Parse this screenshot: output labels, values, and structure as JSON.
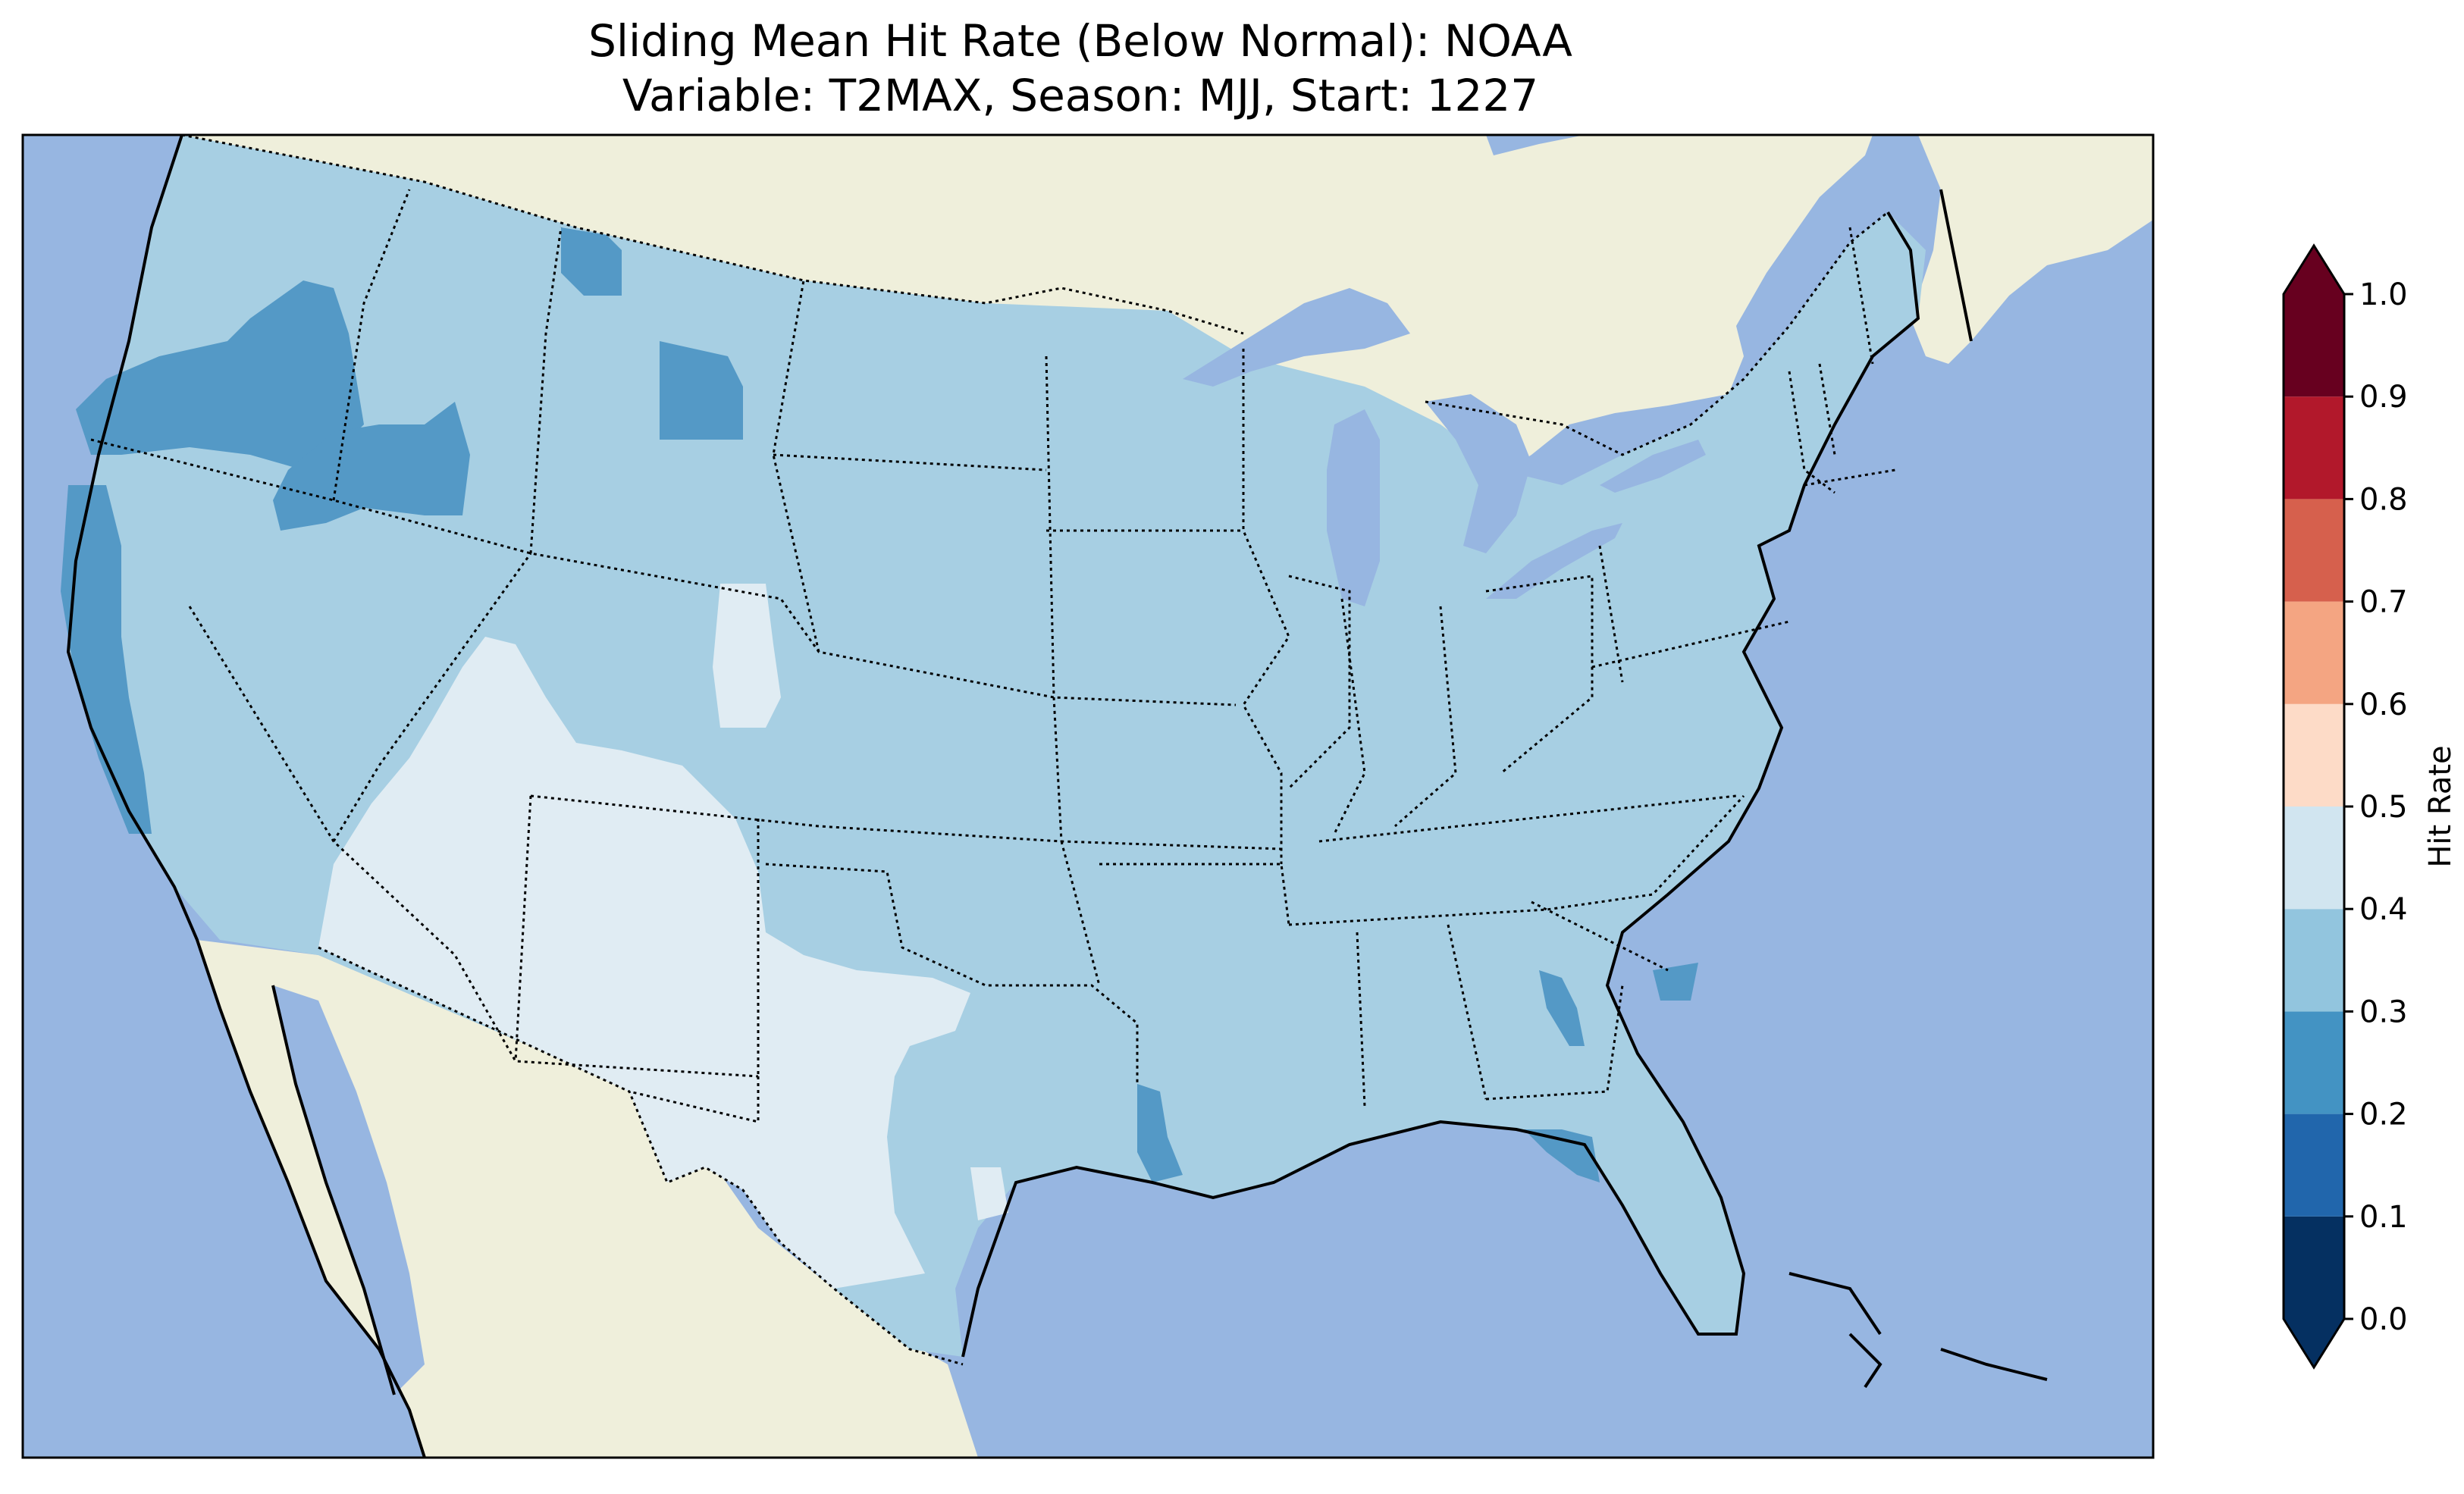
{
  "title": {
    "line1": "Sliding Mean Hit Rate (Below Normal): NOAA",
    "line2": "Variable: T2MAX, Season: MJJ, Start: 1227"
  },
  "colors": {
    "ocean": "#97b6e1",
    "land": "#efefdb",
    "region_03_04": "#a7cfe3",
    "region_02_03": "#5499c6",
    "region_04_05": "#e0ecf3"
  },
  "colorbar": {
    "label": "Hit Rate",
    "ticks": [
      "0.0",
      "0.1",
      "0.2",
      "0.3",
      "0.4",
      "0.5",
      "0.6",
      "0.7",
      "0.8",
      "0.9",
      "1.0"
    ],
    "bins": [
      {
        "from": 0.0,
        "to": 0.1,
        "color": "#053061"
      },
      {
        "from": 0.1,
        "to": 0.2,
        "color": "#2166ac"
      },
      {
        "from": 0.2,
        "to": 0.3,
        "color": "#4393c3"
      },
      {
        "from": 0.3,
        "to": 0.4,
        "color": "#92c5de"
      },
      {
        "from": 0.4,
        "to": 0.5,
        "color": "#d1e5f0"
      },
      {
        "from": 0.5,
        "to": 0.6,
        "color": "#fddbc7"
      },
      {
        "from": 0.6,
        "to": 0.7,
        "color": "#f4a582"
      },
      {
        "from": 0.7,
        "to": 0.8,
        "color": "#d6604d"
      },
      {
        "from": 0.8,
        "to": 0.9,
        "color": "#b2182b"
      },
      {
        "from": 0.9,
        "to": 1.0,
        "color": "#67001f"
      }
    ],
    "under_color": "#053061",
    "over_color": "#67001f"
  }
}
